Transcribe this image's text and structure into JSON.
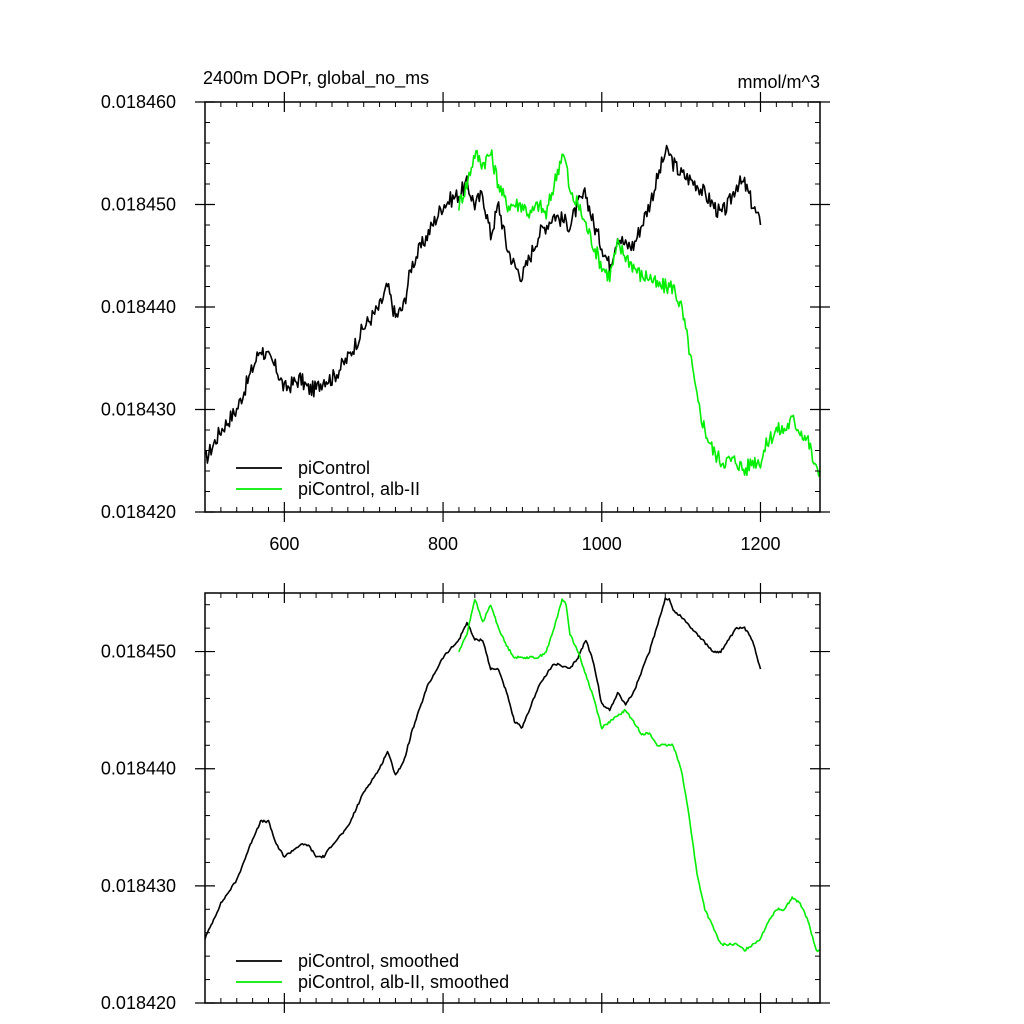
{
  "chart_data": [
    {
      "type": "line",
      "title_left": "2400m DOPr, global_no_ms",
      "title_right": "mmol/m^3",
      "xlabel": "",
      "ylabel": "",
      "xlim": [
        500,
        1275
      ],
      "ylim": [
        0.01842,
        0.01846
      ],
      "x_ticks": [
        600,
        800,
        1000,
        1200
      ],
      "x_tick_labels": [
        "600",
        "800",
        "1000",
        "1200"
      ],
      "x_tick_labels_shown": true,
      "y_ticks": [
        0.01842,
        0.01843,
        0.01844,
        0.01845,
        0.01846
      ],
      "y_tick_labels": [
        "0.018420",
        "0.018430",
        "0.018440",
        "0.018450",
        "0.018460"
      ],
      "grid": false,
      "legend_position": "bottom-left",
      "series": [
        {
          "name": "piControl",
          "color": "#000000",
          "x": [
            500,
            520,
            540,
            560,
            570,
            580,
            590,
            600,
            620,
            630,
            640,
            650,
            660,
            680,
            700,
            720,
            730,
            740,
            750,
            760,
            780,
            800,
            820,
            830,
            840,
            850,
            860,
            870,
            880,
            890,
            900,
            920,
            940,
            960,
            970,
            980,
            990,
            1000,
            1010,
            1020,
            1030,
            1040,
            1060,
            1080,
            1085,
            1090,
            1100,
            1120,
            1140,
            1150,
            1160,
            1170,
            1180,
            1190,
            1200
          ],
          "y": [
            0.018425,
            0.018428,
            0.01843,
            0.018434,
            0.018436,
            0.018435,
            0.018434,
            0.018432,
            0.018433,
            0.018432,
            0.018432,
            0.018433,
            0.018433,
            0.018435,
            0.018438,
            0.01844,
            0.018442,
            0.018439,
            0.01844,
            0.018444,
            0.018447,
            0.01845,
            0.018451,
            0.018452,
            0.01845,
            0.018451,
            0.018447,
            0.01845,
            0.018446,
            0.018444,
            0.018443,
            0.018447,
            0.018449,
            0.018448,
            0.01845,
            0.018451,
            0.018448,
            0.018446,
            0.018444,
            0.018447,
            0.018446,
            0.018446,
            0.01845,
            0.018455,
            0.018455,
            0.018454,
            0.018453,
            0.018452,
            0.01845,
            0.018449,
            0.01845,
            0.018452,
            0.018452,
            0.01845,
            0.018448
          ]
        },
        {
          "name": "piControl, alb-II",
          "color": "#00ee00",
          "x": [
            820,
            830,
            840,
            850,
            860,
            870,
            880,
            890,
            900,
            910,
            920,
            930,
            940,
            950,
            955,
            960,
            970,
            980,
            990,
            1000,
            1010,
            1020,
            1030,
            1040,
            1050,
            1060,
            1070,
            1080,
            1090,
            1100,
            1110,
            1120,
            1130,
            1140,
            1150,
            1160,
            1170,
            1180,
            1190,
            1200,
            1210,
            1220,
            1230,
            1240,
            1250,
            1260,
            1270,
            1275
          ],
          "y": [
            0.01845,
            0.018452,
            0.018455,
            0.018454,
            0.018455,
            0.018452,
            0.01845,
            0.01845,
            0.01845,
            0.018449,
            0.01845,
            0.018449,
            0.018452,
            0.018455,
            0.018454,
            0.018451,
            0.01845,
            0.018448,
            0.018446,
            0.018444,
            0.018443,
            0.018446,
            0.018445,
            0.018444,
            0.018443,
            0.018443,
            0.018442,
            0.018442,
            0.018442,
            0.01844,
            0.018436,
            0.018431,
            0.018428,
            0.018426,
            0.018425,
            0.018425,
            0.018425,
            0.018424,
            0.018425,
            0.018425,
            0.018427,
            0.018428,
            0.018428,
            0.018429,
            0.018428,
            0.018427,
            0.018424,
            0.018424
          ]
        }
      ]
    },
    {
      "type": "line",
      "xlim": [
        500,
        1275
      ],
      "ylim": [
        0.01842,
        0.018455
      ],
      "x_ticks": [
        600,
        800,
        1000,
        1200
      ],
      "x_tick_labels_shown": false,
      "y_ticks": [
        0.01842,
        0.01843,
        0.01844,
        0.01845
      ],
      "y_tick_labels": [
        "0.018420",
        "0.018430",
        "0.018440",
        "0.018450"
      ],
      "grid": false,
      "legend_position": "bottom-left",
      "series": [
        {
          "name": "piControl, smoothed",
          "color": "#000000",
          "x": [
            500,
            520,
            540,
            560,
            570,
            580,
            590,
            600,
            620,
            630,
            640,
            650,
            660,
            680,
            700,
            720,
            730,
            740,
            750,
            760,
            780,
            800,
            820,
            830,
            840,
            850,
            860,
            870,
            880,
            890,
            900,
            920,
            940,
            960,
            970,
            980,
            990,
            1000,
            1010,
            1020,
            1030,
            1040,
            1060,
            1080,
            1085,
            1090,
            1100,
            1120,
            1140,
            1150,
            1160,
            1170,
            1180,
            1190,
            1200
          ],
          "y": [
            0.0184255,
            0.0184285,
            0.0184305,
            0.018434,
            0.0184355,
            0.0184355,
            0.0184335,
            0.0184325,
            0.0184335,
            0.0184335,
            0.0184325,
            0.0184325,
            0.0184335,
            0.018435,
            0.018438,
            0.01844,
            0.0184415,
            0.0184395,
            0.0184405,
            0.018443,
            0.018447,
            0.0184495,
            0.018451,
            0.0184525,
            0.018451,
            0.018451,
            0.0184485,
            0.0184485,
            0.0184465,
            0.018444,
            0.0184435,
            0.018447,
            0.018449,
            0.0184485,
            0.0184495,
            0.018451,
            0.018449,
            0.0184455,
            0.018445,
            0.0184465,
            0.0184455,
            0.0184465,
            0.01845,
            0.0184545,
            0.0184545,
            0.0184535,
            0.018453,
            0.0184515,
            0.01845,
            0.01845,
            0.018451,
            0.018452,
            0.018452,
            0.018451,
            0.0184485
          ]
        },
        {
          "name": "piControl, alb-II, smoothed",
          "color": "#00ee00",
          "x": [
            820,
            830,
            840,
            850,
            860,
            870,
            880,
            890,
            900,
            910,
            920,
            930,
            940,
            950,
            955,
            960,
            970,
            980,
            990,
            1000,
            1010,
            1020,
            1030,
            1040,
            1050,
            1060,
            1070,
            1080,
            1090,
            1100,
            1110,
            1120,
            1130,
            1140,
            1150,
            1160,
            1170,
            1180,
            1190,
            1200,
            1210,
            1220,
            1230,
            1240,
            1250,
            1260,
            1270,
            1275
          ],
          "y": [
            0.01845,
            0.0184515,
            0.0184545,
            0.0184525,
            0.018454,
            0.018452,
            0.0184505,
            0.0184495,
            0.0184495,
            0.0184495,
            0.0184495,
            0.01845,
            0.018452,
            0.0184545,
            0.018454,
            0.0184515,
            0.01845,
            0.018448,
            0.018446,
            0.0184435,
            0.018444,
            0.0184445,
            0.018445,
            0.018444,
            0.018443,
            0.018443,
            0.018442,
            0.018442,
            0.018442,
            0.01844,
            0.018436,
            0.018431,
            0.018428,
            0.0184265,
            0.018425,
            0.018425,
            0.018425,
            0.0184245,
            0.018425,
            0.0184255,
            0.018427,
            0.018428,
            0.018428,
            0.018429,
            0.0184285,
            0.018427,
            0.0184245,
            0.0184245
          ]
        }
      ]
    }
  ]
}
